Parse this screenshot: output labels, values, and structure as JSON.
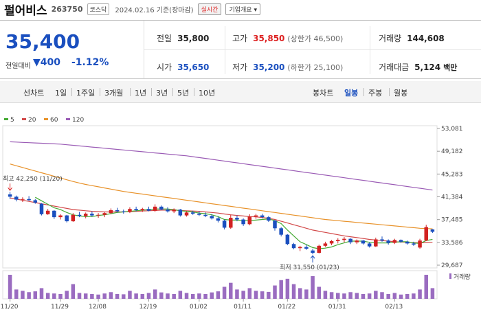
{
  "header": {
    "name": "펄어비스",
    "code": "263750",
    "market": "코스닥",
    "date": "2024.02.16 기준(장마감)",
    "realtime": "실시간",
    "company_info": "기업개요"
  },
  "quote": {
    "price": "35,400",
    "change_label": "전일대비",
    "change": "400",
    "change_pct": "-1.12%",
    "prev_label": "전일",
    "prev": "35,800",
    "high_label": "고가",
    "high": "35,850",
    "upper_limit": "(상한가 46,500)",
    "volume_label": "거래량",
    "volume": "144,608",
    "open_label": "시가",
    "open": "35,650",
    "low_label": "저가",
    "low": "35,200",
    "lower_limit": "(하한가 25,100)",
    "amount_label": "거래대금",
    "amount": "5,124",
    "amount_unit": "백만"
  },
  "toolbar": {
    "line_chart": "선차트",
    "periods": [
      "1일",
      "1주일",
      "3개월",
      "1년",
      "3년",
      "5년",
      "10년"
    ],
    "candle_chart": "봉차트",
    "candle_periods": [
      "일봉",
      "주봉",
      "월봉"
    ]
  },
  "colors": {
    "up": "#d22222",
    "down": "#1a4fbf",
    "ma5": "#44aa33",
    "ma20": "#d24848",
    "ma60": "#e8922a",
    "ma120": "#9a5bb5",
    "volume": "#9a6cc0"
  },
  "chart_data": {
    "type": "candlestick",
    "legend": [
      "5",
      "20",
      "60",
      "120"
    ],
    "y_ticks": [
      "53,081",
      "49,182",
      "45,283",
      "41,384",
      "37,485",
      "33,586",
      "29,687"
    ],
    "y_range": [
      29687,
      53081
    ],
    "x_ticks": [
      "11/20",
      "11/29",
      "12/08",
      "12/19",
      "01/02",
      "01/11",
      "01/22",
      "01/31",
      "02/13"
    ],
    "max_label": "최고 42,250 (11/20)",
    "min_label": "최저 31,550 (01/23)",
    "volume_label": "거래량",
    "candles": [
      [
        41800,
        42250,
        41000,
        41400
      ],
      [
        41400,
        41600,
        40600,
        40900
      ],
      [
        40900,
        41300,
        40500,
        41000
      ],
      [
        41000,
        41500,
        40700,
        40800
      ],
      [
        40800,
        41000,
        40200,
        40400
      ],
      [
        40200,
        40300,
        38200,
        38400
      ],
      [
        38400,
        39300,
        38300,
        39000
      ],
      [
        39000,
        39100,
        37600,
        37900
      ],
      [
        37900,
        38400,
        37500,
        38200
      ],
      [
        38200,
        38300,
        37000,
        37200
      ],
      [
        37200,
        38600,
        37100,
        38300
      ],
      [
        38300,
        38800,
        37900,
        38100
      ],
      [
        38100,
        38700,
        37700,
        38500
      ],
      [
        38500,
        38900,
        38000,
        38200
      ],
      [
        38200,
        38600,
        37800,
        38300
      ],
      [
        38300,
        38800,
        37900,
        38600
      ],
      [
        38600,
        39400,
        38400,
        39100
      ],
      [
        39100,
        39500,
        38700,
        38900
      ],
      [
        38900,
        39200,
        38500,
        38800
      ],
      [
        38800,
        39600,
        38600,
        39300
      ],
      [
        39300,
        39700,
        38900,
        39100
      ],
      [
        39100,
        39500,
        38800,
        39300
      ],
      [
        39300,
        39700,
        38900,
        39000
      ],
      [
        39000,
        40100,
        38800,
        39700
      ],
      [
        39700,
        39900,
        39100,
        39200
      ],
      [
        39200,
        39600,
        38700,
        38900
      ],
      [
        38900,
        39400,
        38600,
        39200
      ],
      [
        39200,
        39300,
        38000,
        38200
      ],
      [
        38200,
        38900,
        38000,
        38700
      ],
      [
        38700,
        39000,
        38300,
        38500
      ],
      [
        38500,
        38900,
        38100,
        38300
      ],
      [
        38300,
        38700,
        37900,
        38100
      ],
      [
        38100,
        38400,
        37500,
        37700
      ],
      [
        37700,
        38000,
        37000,
        37300
      ],
      [
        37300,
        37500,
        35800,
        36100
      ],
      [
        36100,
        38300,
        35900,
        37800
      ],
      [
        37800,
        38200,
        37200,
        37500
      ],
      [
        37500,
        37700,
        36400,
        36700
      ],
      [
        36700,
        38400,
        36500,
        38000
      ],
      [
        38000,
        38500,
        37600,
        38200
      ],
      [
        38200,
        38500,
        37700,
        37900
      ],
      [
        37900,
        38100,
        37100,
        37300
      ],
      [
        37300,
        37400,
        35600,
        36000
      ],
      [
        36000,
        36200,
        34600,
        34900
      ],
      [
        34900,
        35000,
        33100,
        33300
      ],
      [
        33300,
        33500,
        32400,
        32600
      ],
      [
        32600,
        33000,
        32100,
        32800
      ],
      [
        32800,
        33200,
        32300,
        32500
      ],
      [
        32200,
        32500,
        31550,
        31800
      ],
      [
        31800,
        33200,
        31700,
        33000
      ],
      [
        33000,
        33700,
        32800,
        33400
      ],
      [
        33400,
        34000,
        33100,
        33800
      ],
      [
        33800,
        34300,
        33400,
        34000
      ],
      [
        34000,
        34500,
        33600,
        34200
      ],
      [
        34200,
        34300,
        33300,
        33600
      ],
      [
        33600,
        34100,
        33300,
        33900
      ],
      [
        33900,
        34000,
        33200,
        33400
      ],
      [
        33400,
        33600,
        32700,
        32900
      ],
      [
        32900,
        34400,
        32800,
        34100
      ],
      [
        34100,
        34600,
        33700,
        33900
      ],
      [
        33900,
        34100,
        33200,
        33500
      ],
      [
        33500,
        34200,
        33300,
        34000
      ],
      [
        34000,
        34100,
        33500,
        33700
      ],
      [
        33700,
        33900,
        33200,
        33400
      ],
      [
        33400,
        33700,
        33000,
        33200
      ],
      [
        32700,
        34200,
        32500,
        33900
      ],
      [
        33900,
        36600,
        33800,
        36200
      ],
      [
        35800,
        35850,
        35200,
        35400
      ]
    ],
    "volumes": [
      90,
      35,
      30,
      25,
      28,
      40,
      22,
      20,
      18,
      30,
      55,
      22,
      20,
      18,
      16,
      20,
      25,
      18,
      17,
      30,
      20,
      18,
      22,
      35,
      24,
      20,
      18,
      30,
      22,
      18,
      20,
      18,
      24,
      28,
      45,
      60,
      35,
      30,
      40,
      30,
      28,
      26,
      50,
      70,
      75,
      55,
      40,
      35,
      85,
      45,
      30,
      25,
      22,
      20,
      25,
      22,
      18,
      20,
      30,
      25,
      18,
      22,
      16,
      18,
      20,
      35,
      90,
      40
    ],
    "ma5": [
      null,
      null,
      null,
      null,
      41300,
      40700,
      40100,
      39500,
      39200,
      38700,
      38300,
      38100,
      38000,
      38000,
      38200,
      38300,
      38500,
      38700,
      38800,
      38900,
      39000,
      39100,
      39200,
      39300,
      39300,
      39300,
      39200,
      39000,
      38900,
      38800,
      38600,
      38500,
      38300,
      38000,
      37500,
      37400,
      37400,
      37300,
      37300,
      37400,
      37500,
      37600,
      37300,
      36800,
      35700,
      34700,
      33700,
      33200,
      32700,
      32500,
      32600,
      32800,
      33200,
      33500,
      33800,
      33800,
      33800,
      33600,
      33500,
      33500,
      33500,
      33600,
      33700,
      33700,
      33500,
      33400,
      33900,
      34100
    ],
    "ma20": [
      41200,
      41000,
      40800,
      40600,
      40400,
      40200,
      40000,
      39800,
      39600,
      39400,
      39200,
      39100,
      39000,
      38900,
      38850,
      38800,
      38800,
      38800,
      38800,
      38850,
      38900,
      38950,
      39000,
      39050,
      39100,
      39100,
      39100,
      39050,
      39000,
      38950,
      38900,
      38800,
      38700,
      38600,
      38450,
      38300,
      38200,
      38100,
      38000,
      37950,
      37850,
      37700,
      37500,
      37200,
      36900,
      36600,
      36300,
      36000,
      35700,
      35500,
      35300,
      35100,
      34900,
      34700,
      34550,
      34400,
      34250,
      34100,
      34000,
      33900,
      33800,
      33700,
      33650,
      33600,
      33550,
      33500,
      33550,
      33600
    ],
    "ma60": [
      47000,
      46700,
      46400,
      46100,
      45800,
      45500,
      45200,
      44900,
      44600,
      44300,
      44000,
      43750,
      43500,
      43300,
      43100,
      42900,
      42700,
      42500,
      42300,
      42150,
      42000,
      41850,
      41700,
      41550,
      41400,
      41250,
      41100,
      40950,
      40800,
      40650,
      40500,
      40350,
      40200,
      40050,
      39900,
      39750,
      39600,
      39450,
      39300,
      39150,
      39000,
      38850,
      38700,
      38550,
      38400,
      38250,
      38100,
      37950,
      37800,
      37650,
      37500,
      37400,
      37300,
      37200,
      37100,
      37000,
      36900,
      36800,
      36700,
      36600,
      36500,
      36400,
      36300,
      36200,
      36100,
      36000,
      35950,
      35900
    ],
    "ma120": [
      50800,
      50750,
      50700,
      50650,
      50600,
      50550,
      50500,
      50450,
      50400,
      50300,
      50200,
      50100,
      50000,
      49900,
      49800,
      49700,
      49600,
      49500,
      49400,
      49300,
      49200,
      49100,
      49000,
      48900,
      48800,
      48700,
      48600,
      48500,
      48400,
      48250,
      48100,
      47950,
      47800,
      47650,
      47500,
      47350,
      47200,
      47050,
      46900,
      46750,
      46600,
      46450,
      46300,
      46150,
      46000,
      45850,
      45700,
      45550,
      45400,
      45250,
      45100,
      44950,
      44800,
      44650,
      44500,
      44350,
      44200,
      44050,
      43900,
      43750,
      43600,
      43450,
      43300,
      43150,
      43000,
      42850,
      42700,
      42550
    ]
  }
}
